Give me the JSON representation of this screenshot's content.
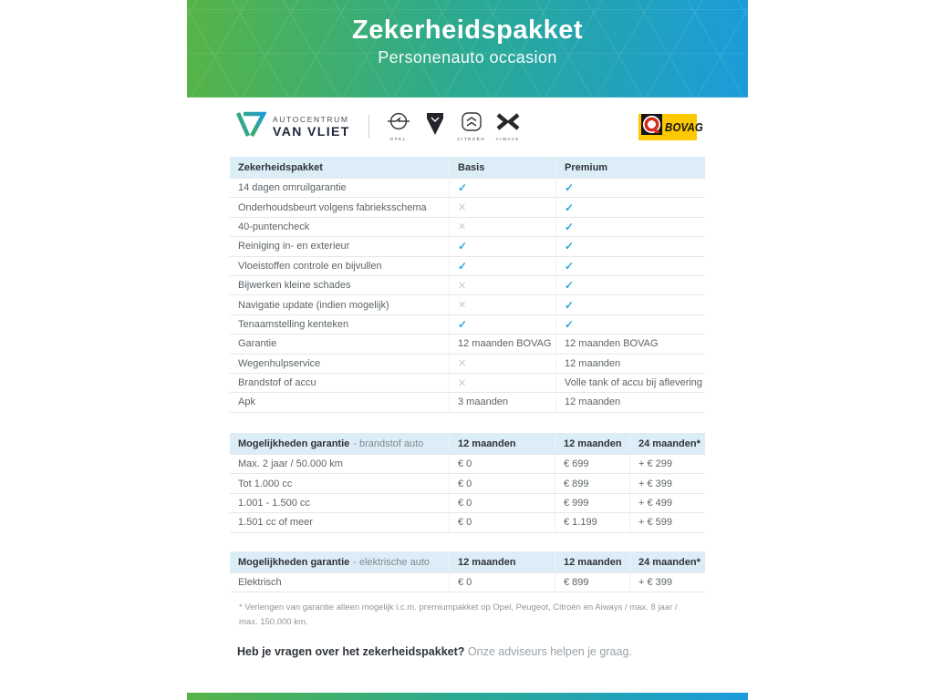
{
  "banner": {
    "title": "Zekerheidspakket",
    "subtitle": "Personenauto occasion"
  },
  "branding": {
    "dealer_name_top": "AUTOCENTRUM",
    "dealer_name_bottom": "VAN VLIET",
    "brands": [
      {
        "name": "opel",
        "caption": "OPEL"
      },
      {
        "name": "peugeot",
        "caption": ""
      },
      {
        "name": "citroen",
        "caption": "CITROËN"
      },
      {
        "name": "aiways",
        "caption": "AIWAYS"
      }
    ],
    "bovag_label": "BOVAG"
  },
  "icons": {
    "check": "✓",
    "cross": "✕"
  },
  "colors": {
    "banner_green": "#56b447",
    "banner_teal": "#2caa90",
    "banner_blue": "#1b9cdb",
    "table_header_bg": "#ddedf8",
    "check_blue": "#2aa8e0",
    "cross_gray": "#c5cacd",
    "bovag_yellow": "#fdc800"
  },
  "tables": [
    {
      "columns": [
        "Zekerheidspakket",
        "Basis",
        "Premium"
      ],
      "rows": [
        [
          "14 dagen omruilgarantie",
          "@check",
          "@check"
        ],
        [
          "Onderhoudsbeurt volgens fabrieksschema",
          "@cross",
          "@check"
        ],
        [
          "40-puntencheck",
          "@cross",
          "@check"
        ],
        [
          "Reiniging in- en exterieur",
          "@check",
          "@check"
        ],
        [
          "Vloeistoffen controle en bijvullen",
          "@check",
          "@check"
        ],
        [
          "Bijwerken kleine schades",
          "@cross",
          "@check"
        ],
        [
          "Navigatie update (indien mogelijk)",
          "@cross",
          "@check"
        ],
        [
          "Tenaamstelling kenteken",
          "@check",
          "@check"
        ],
        [
          "Garantie",
          "12 maanden BOVAG",
          "12 maanden BOVAG"
        ],
        [
          "Wegenhulpservice",
          "@cross",
          "12 maanden"
        ],
        [
          "Brandstof of accu",
          "@cross",
          "Volle tank of accu bij aflevering"
        ],
        [
          "Apk",
          "3 maanden",
          "12 maanden"
        ]
      ]
    },
    {
      "header_title": "Mogelijkheden garantie",
      "header_subtitle": "- brandstof auto",
      "columns": [
        "",
        "12 maanden",
        "12 maanden",
        "24 maanden*"
      ],
      "rows": [
        [
          "Max. 2 jaar / 50.000 km",
          "€ 0",
          "€ 699",
          "+ € 299"
        ],
        [
          "Tot 1.000 cc",
          "€ 0",
          "€ 899",
          "+ € 399"
        ],
        [
          "1.001 - 1.500 cc",
          "€ 0",
          "€ 999",
          "+ € 499"
        ],
        [
          "1.501 cc of meer",
          "€ 0",
          "€ 1.199",
          "+ € 599"
        ]
      ]
    },
    {
      "header_title": "Mogelijkheden garantie",
      "header_subtitle": "- elektrische auto",
      "columns": [
        "",
        "12 maanden",
        "12 maanden",
        "24 maanden*"
      ],
      "rows": [
        [
          "Elektrisch",
          "€ 0",
          "€ 899",
          "+ € 399"
        ]
      ]
    }
  ],
  "footnote": "* Verlengen van garantie alleen mogelijk i.c.m. premiumpakket op Opel, Peugeot, Citroën en Aiways / max. 8 jaar / max. 150.000 km.",
  "question": {
    "bold": "Heb je vragen over het zekerheidspakket?",
    "rest": " Onze adviseurs helpen je graag."
  }
}
